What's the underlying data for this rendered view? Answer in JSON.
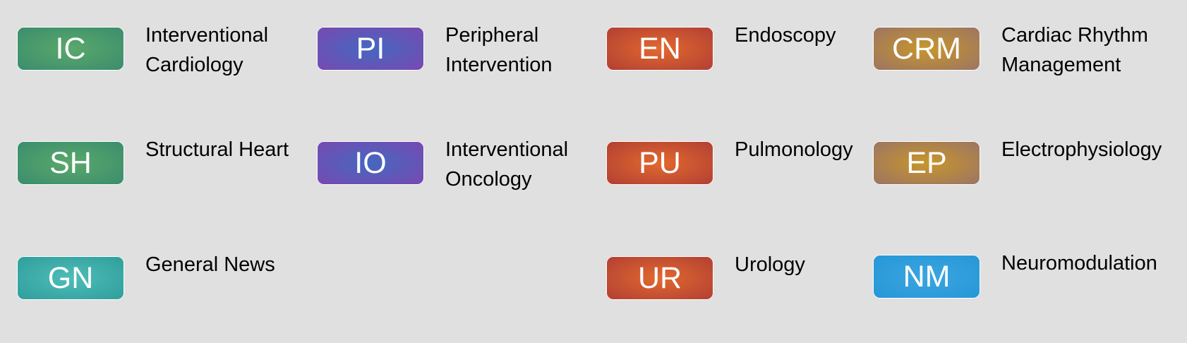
{
  "categories": [
    {
      "code": "IC",
      "name_line1": "Interventional",
      "name_line2": "Cardiology",
      "color": "#3a8c6e"
    },
    {
      "code": "PI",
      "name_line1": "Peripheral",
      "name_line2": "Intervention",
      "color": "#5a5ab8"
    },
    {
      "code": "EN",
      "name_line1": "Endoscopy",
      "name_line2": "",
      "color": "#c84e30"
    },
    {
      "code": "CRM",
      "name_line1": "Cardiac Rhythm",
      "name_line2": "Management",
      "color": "#a48452"
    },
    {
      "code": "SH",
      "name_line1": "Structural Heart",
      "name_line2": "",
      "color": "#3a8c6e"
    },
    {
      "code": "IO",
      "name_line1": "Interventional",
      "name_line2": "Oncology",
      "color": "#5a5ab8"
    },
    {
      "code": "PU",
      "name_line1": "Pulmonology",
      "name_line2": "",
      "color": "#c84e30"
    },
    {
      "code": "EP",
      "name_line1": "Electrophysiology",
      "name_line2": "",
      "color": "#a48452"
    },
    {
      "code": "GN",
      "name_line1": "General News",
      "name_line2": "",
      "color": "#3aaeaa"
    },
    {
      "code": "UR",
      "name_line1": "Urology",
      "name_line2": "",
      "color": "#c84e30"
    },
    {
      "code": "NM",
      "name_line1": "Neuromodulation",
      "name_line2": "",
      "color": "#2e9ed8"
    }
  ]
}
